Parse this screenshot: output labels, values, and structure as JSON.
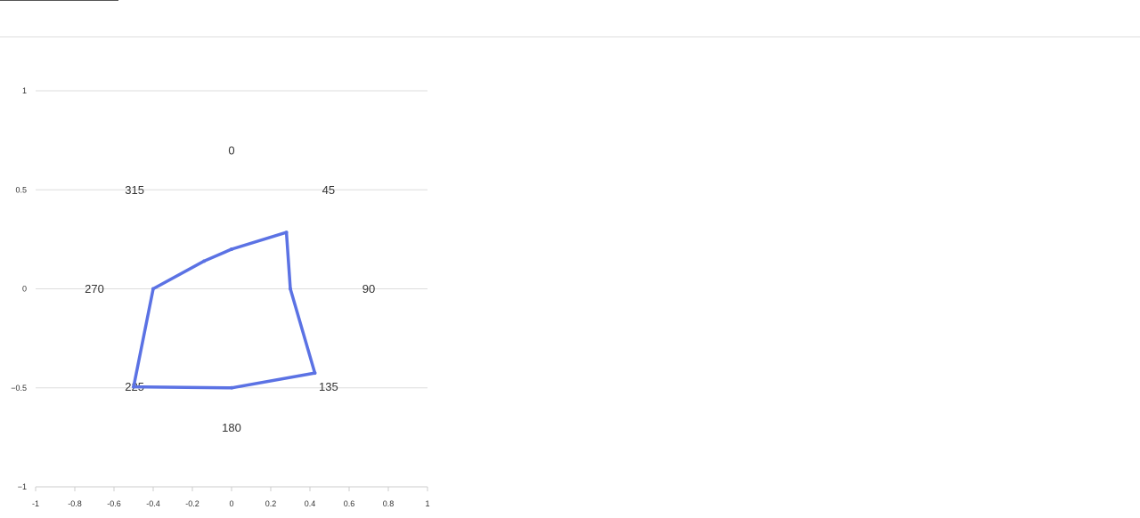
{
  "chart_data": {
    "type": "line",
    "title": "",
    "xlabel": "",
    "ylabel": "",
    "xlim": [
      -1,
      1
    ],
    "ylim": [
      -1,
      1
    ],
    "xticks": [
      "-1",
      "-0.8",
      "-0.6",
      "-0.4",
      "-0.2",
      "0",
      "0.2",
      "0.4",
      "0.6",
      "0.8",
      "1"
    ],
    "yticks": [
      "1",
      "0.5",
      "0",
      "−0.5",
      "−1"
    ],
    "grid": "horizontal",
    "angle_labels": [
      {
        "text": "0",
        "x": 0,
        "y": 0.7
      },
      {
        "text": "45",
        "x": 0.495,
        "y": 0.5
      },
      {
        "text": "90",
        "x": 0.7,
        "y": 0
      },
      {
        "text": "135",
        "x": 0.495,
        "y": -0.495
      },
      {
        "text": "180",
        "x": 0,
        "y": -0.7
      },
      {
        "text": "225",
        "x": -0.495,
        "y": -0.495
      },
      {
        "text": "270",
        "x": -0.7,
        "y": 0
      },
      {
        "text": "315",
        "x": -0.495,
        "y": 0.5
      }
    ],
    "series": [
      {
        "color": "#5b72e4",
        "points": [
          {
            "x": 0.0,
            "y": 0.2
          },
          {
            "x": 0.28,
            "y": 0.285
          },
          {
            "x": 0.3,
            "y": 0.0
          },
          {
            "x": 0.425,
            "y": -0.425
          },
          {
            "x": 0.0,
            "y": -0.5
          },
          {
            "x": -0.5,
            "y": -0.495
          },
          {
            "x": -0.4,
            "y": 0.0
          },
          {
            "x": -0.14,
            "y": 0.14
          },
          {
            "x": 0.0,
            "y": 0.2
          }
        ]
      }
    ]
  }
}
